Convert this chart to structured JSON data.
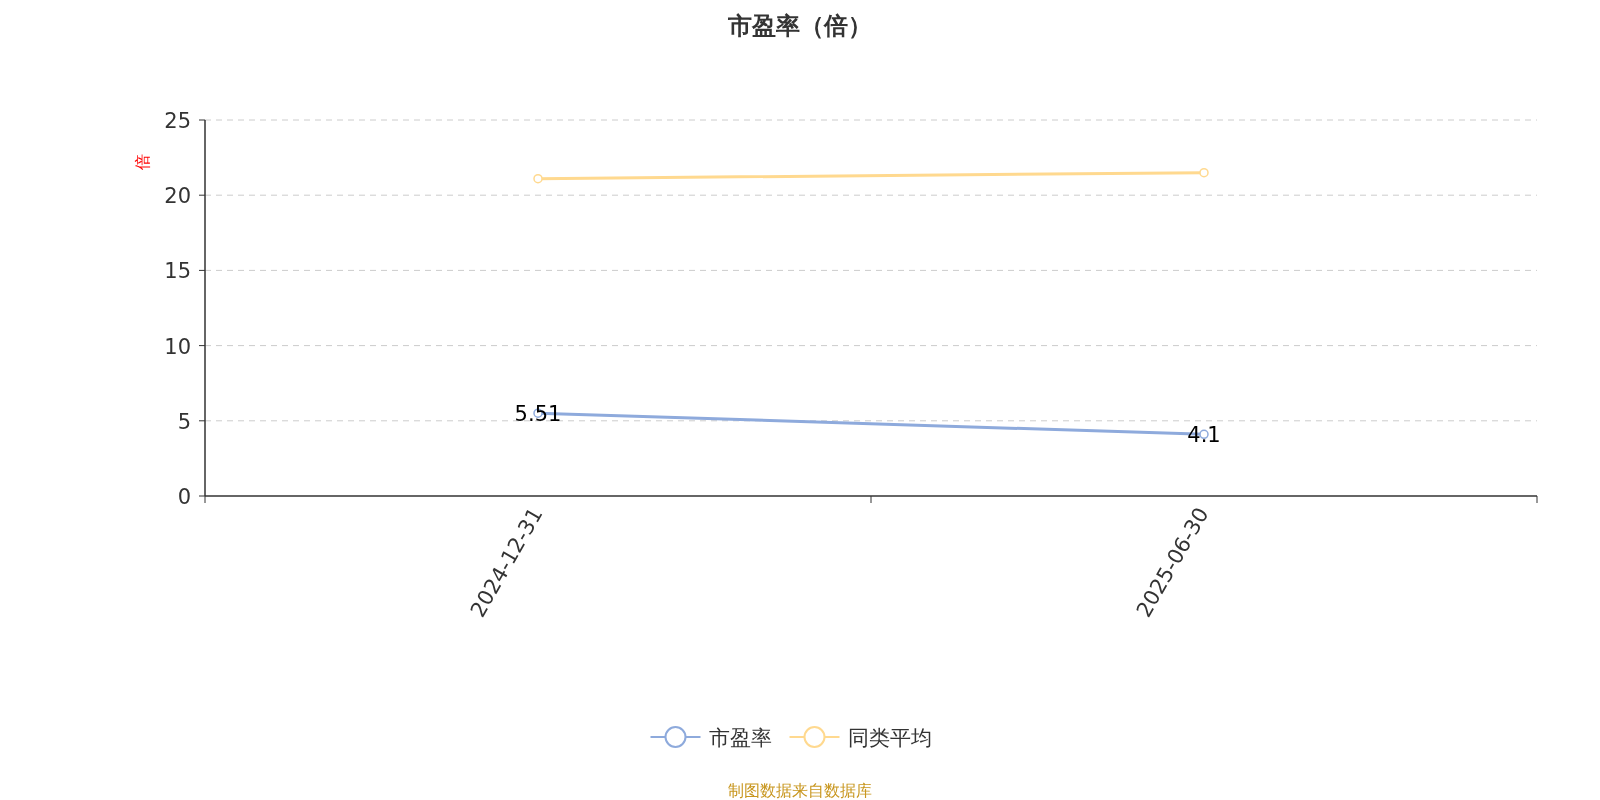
{
  "chart_data": {
    "type": "line",
    "title": "市盈率（倍）",
    "ylabel": "倍",
    "categories": [
      "2024-12-31",
      "2025-06-30"
    ],
    "series": [
      {
        "name": "市盈率",
        "color": "#8eaadc",
        "values": [
          5.51,
          4.1
        ],
        "value_labels": [
          "5.51",
          "4.1"
        ]
      },
      {
        "name": "同类平均",
        "color": "#ffd98f",
        "values": [
          21.1,
          21.5
        ]
      }
    ],
    "ylim": [
      0,
      25
    ],
    "yticks": [
      0,
      5,
      10,
      15,
      20,
      25
    ],
    "grid": "y",
    "legend": "bottom",
    "marker": "circle",
    "annotations": [
      "制图数据来自数据库"
    ]
  }
}
